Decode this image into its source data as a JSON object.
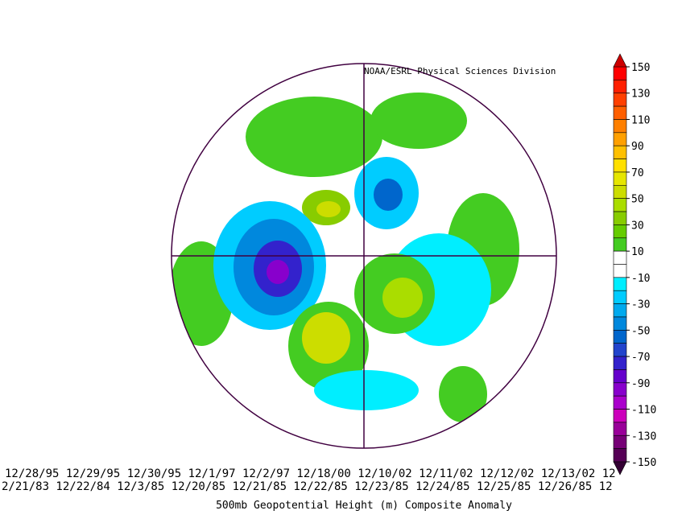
{
  "credit": "NOAA/ESRL Physical Sciences Division",
  "dates_row_1": "12/28/95 12/29/95 12/30/95 12/1/97 12/2/97 12/18/00 12/10/02 12/11/02 12/12/02 12/13/02 12",
  "dates_row_2": "2/21/83 12/22/84 12/3/85 12/20/85 12/21/85 12/22/85 12/23/85 12/24/85 12/25/85 12/26/85 12",
  "title": "500mb Geopotential Height (m) Composite Anomaly",
  "colorbar": {
    "ticks": [
      150,
      130,
      110,
      90,
      70,
      50,
      30,
      10,
      -10,
      -30,
      -50,
      -70,
      -90,
      -110,
      -130,
      -150
    ],
    "colors": [
      "#ff0000",
      "#ff2000",
      "#ff4000",
      "#ff6000",
      "#ff8000",
      "#ffa000",
      "#ffc000",
      "#ffe000",
      "#e6e600",
      "#ccdd00",
      "#aadd00",
      "#88cc00",
      "#66cc00",
      "#44cc22",
      "#ffffff",
      "#ffffff",
      "#00eeff",
      "#00ccff",
      "#00aaee",
      "#0088dd",
      "#0066cc",
      "#2244cc",
      "#3322cc",
      "#6600cc",
      "#8800cc",
      "#aa00cc",
      "#cc00bb",
      "#990099",
      "#770077",
      "#550055"
    ],
    "over_color": "#cc0000",
    "under_color": "#330033"
  }
}
